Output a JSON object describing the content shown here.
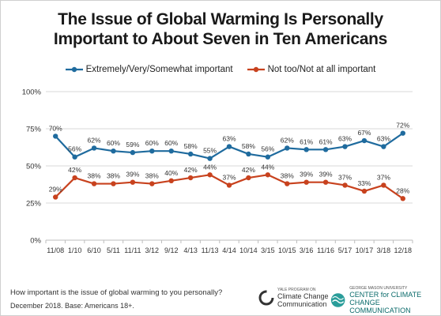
{
  "title_line1": "The Issue of Global Warming Is Personally",
  "title_line2": "Important to About Seven in Ten Americans",
  "footer": {
    "question": "How important is the issue of global warming to you personally?",
    "note": "December 2018. Base: Americans 18+."
  },
  "logos": {
    "yale_small": "YALE PROGRAM ON",
    "yale_line1": "Climate Change",
    "yale_line2": "Communication",
    "gmu_small": "GEORGE MASON UNIVERSITY",
    "gmu_line1": "CENTER for CLIMATE CHANGE",
    "gmu_line2": "COMMUNICATION"
  },
  "chart_data": {
    "type": "line",
    "categories": [
      "11/08",
      "1/10",
      "6/10",
      "5/11",
      "11/11",
      "3/12",
      "9/12",
      "4/13",
      "11/13",
      "4/14",
      "10/14",
      "3/15",
      "10/15",
      "3/16",
      "11/16",
      "5/17",
      "10/17",
      "3/18",
      "12/18"
    ],
    "ylim": [
      0,
      100
    ],
    "yticks": [
      "0%",
      "25%",
      "50%",
      "75%",
      "100%"
    ],
    "grid": "horizontal",
    "legend": "top-center",
    "series": [
      {
        "name": "Extremely/Very/Somewhat important",
        "color": "#1f6b9e",
        "values": [
          70,
          56,
          62,
          60,
          59,
          60,
          60,
          58,
          55,
          63,
          58,
          56,
          62,
          61,
          61,
          63,
          67,
          63,
          72
        ],
        "labels": [
          "70%",
          "56%",
          "62%",
          "60%",
          "59%",
          "60%",
          "60%",
          "58%",
          "55%",
          "63%",
          "58%",
          "56%",
          "62%",
          "61%",
          "61%",
          "63%",
          "67%",
          "63%",
          "72%"
        ]
      },
      {
        "name": "Not too/Not at all important",
        "color": "#c8421e",
        "values": [
          29,
          42,
          38,
          38,
          39,
          38,
          40,
          42,
          44,
          37,
          42,
          44,
          38,
          39,
          39,
          37,
          33,
          37,
          28
        ],
        "labels": [
          "29%",
          "42%",
          "38%",
          "38%",
          "39%",
          "38%",
          "40%",
          "42%",
          "44%",
          "37%",
          "42%",
          "44%",
          "38%",
          "39%",
          "39%",
          "37%",
          "33%",
          "37%",
          "28%"
        ]
      }
    ]
  }
}
